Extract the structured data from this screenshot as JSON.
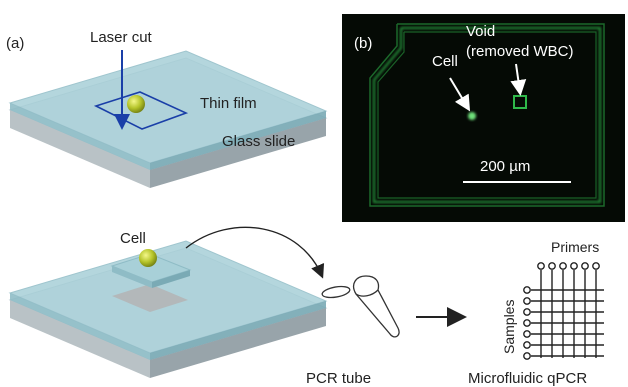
{
  "panel_a": {
    "tag": "(a)",
    "laser_label": "Laser cut",
    "film_label": "Thin film",
    "slide_label": "Glass slide"
  },
  "panel_b": {
    "tag": "(b)",
    "cell_label": "Cell",
    "void_label_1": "Void",
    "void_label_2": "(removed WBC)",
    "scale_label": "200 µm"
  },
  "bottom": {
    "cell_label": "Cell",
    "tube_label": "PCR tube",
    "chip_label": "Microfluidic qPCR",
    "primers_label": "Primers",
    "samples_label": "Samples"
  },
  "colors": {
    "film": "#a8d0d8",
    "slide_top": "#d8e4ea",
    "cell": "#b5c42a",
    "fluorescence": "#2fb84a",
    "laser": "#1a3fa8",
    "micrograph_bg": "#050a05"
  }
}
